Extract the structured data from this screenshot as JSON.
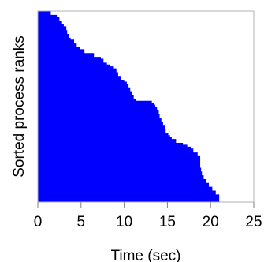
{
  "chart_data": {
    "type": "area",
    "title": "",
    "xlabel": "Time (sec)",
    "ylabel": "Sorted process ranks",
    "xlim": [
      0,
      25
    ],
    "xticks": [
      0,
      5,
      10,
      15,
      20,
      25
    ],
    "xtick_labels": [
      "0",
      "5",
      "10",
      "15",
      "20",
      "25"
    ],
    "ylim": [
      0,
      1
    ],
    "yticks": [],
    "grid": false,
    "legend": "none",
    "fill_color": "#0000ff",
    "series": [
      {
        "note_rank_fraction_and_end_time_pairs_omitted": true,
        "rank_fraction": [
          0.0,
          0.02,
          0.03,
          0.05,
          0.07,
          0.08,
          0.1,
          0.12,
          0.14,
          0.15,
          0.17,
          0.19,
          0.2,
          0.22,
          0.24,
          0.25,
          0.27,
          0.28,
          0.29,
          0.3,
          0.32,
          0.34,
          0.36,
          0.37,
          0.38,
          0.4,
          0.42,
          0.44,
          0.46,
          0.47,
          0.48,
          0.49,
          0.5,
          0.52,
          0.54,
          0.56,
          0.58,
          0.6,
          0.62,
          0.64,
          0.65,
          0.66,
          0.67,
          0.69,
          0.7,
          0.71,
          0.72,
          0.74,
          0.76,
          0.78,
          0.8,
          0.82,
          0.84,
          0.86,
          0.88,
          0.9,
          0.92,
          0.94,
          0.96,
          0.98
        ],
        "end_time": [
          1.5,
          2.2,
          2.5,
          2.8,
          3.0,
          3.3,
          3.4,
          3.6,
          3.8,
          4.2,
          4.5,
          4.9,
          5.4,
          6.5,
          7.3,
          7.6,
          8.0,
          8.4,
          8.8,
          9.1,
          9.3,
          9.6,
          10.0,
          10.3,
          10.5,
          10.7,
          10.9,
          11.1,
          11.4,
          13.2,
          13.5,
          13.6,
          13.8,
          14.0,
          14.1,
          14.3,
          14.5,
          14.7,
          14.8,
          15.1,
          15.3,
          15.5,
          16.0,
          16.8,
          17.3,
          17.8,
          18.0,
          18.5,
          18.8,
          18.8,
          18.8,
          18.9,
          19.0,
          19.2,
          19.5,
          19.8,
          20.2,
          20.6,
          21.0,
          21.0
        ]
      }
    ]
  }
}
